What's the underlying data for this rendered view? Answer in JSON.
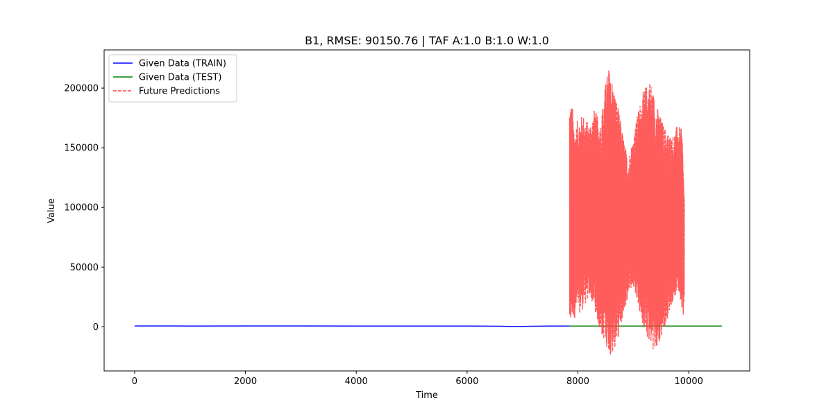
{
  "chart_data": {
    "type": "line",
    "title": "B1, RMSE: 90150.76 | TAF A:1.0 B:1.0 W:1.0",
    "xlabel": "Time",
    "ylabel": "Value",
    "xlim": [
      -550,
      11100
    ],
    "ylim": [
      -37000,
      232000
    ],
    "x_ticks": [
      0,
      2000,
      4000,
      6000,
      8000,
      10000
    ],
    "x_tick_labels": [
      "0",
      "2000",
      "4000",
      "6000",
      "8000",
      "10000"
    ],
    "y_ticks": [
      0,
      50000,
      100000,
      150000,
      200000
    ],
    "y_tick_labels": [
      "0",
      "50000",
      "100000",
      "150000",
      "200000"
    ],
    "grid": false,
    "legend_position": "top-left",
    "series": [
      {
        "name": "Given Data (TRAIN)",
        "color": "#0000ff",
        "style": "solid",
        "x": [
          0,
          1000,
          2000,
          3000,
          4000,
          5000,
          6000,
          6600,
          6800,
          7000,
          7200,
          7500,
          7850
        ],
        "y": [
          700,
          650,
          700,
          720,
          650,
          600,
          620,
          450,
          250,
          300,
          500,
          600,
          650
        ]
      },
      {
        "name": "Given Data (TEST)",
        "color": "#008000",
        "style": "solid",
        "x": [
          7850,
          8500,
          9000,
          9500,
          10000,
          10600
        ],
        "y": [
          650,
          600,
          650,
          600,
          650,
          600
        ]
      },
      {
        "name": "Future Predictions",
        "color": "#ff4040",
        "style": "dashed",
        "start": 7850,
        "end": 9920,
        "upper_envelope": {
          "x": [
            7850,
            7900,
            7950,
            8000,
            8100,
            8200,
            8300,
            8400,
            8500,
            8550,
            8600,
            8700,
            8800,
            8900,
            9000,
            9100,
            9200,
            9300,
            9400,
            9500,
            9600,
            9700,
            9800,
            9880,
            9920
          ],
          "y": [
            192000,
            185000,
            165000,
            175000,
            178000,
            170000,
            183000,
            170000,
            205000,
            218000,
            212000,
            190000,
            165000,
            140000,
            160000,
            185000,
            200000,
            209000,
            190000,
            175000,
            165000,
            160000,
            170000,
            165000,
            112000
          ]
        },
        "lower_envelope": {
          "x": [
            7850,
            7900,
            8000,
            8100,
            8200,
            8300,
            8400,
            8500,
            8600,
            8700,
            8800,
            8900,
            9000,
            9100,
            9200,
            9300,
            9400,
            9500,
            9600,
            9700,
            9800,
            9880,
            9920
          ],
          "y": [
            -5000,
            5000,
            10000,
            15000,
            25000,
            15000,
            -5000,
            -15000,
            -25000,
            -15000,
            5000,
            25000,
            35000,
            15000,
            -5000,
            -15000,
            -22000,
            -12000,
            5000,
            20000,
            30000,
            15000,
            5000
          ]
        }
      }
    ]
  }
}
